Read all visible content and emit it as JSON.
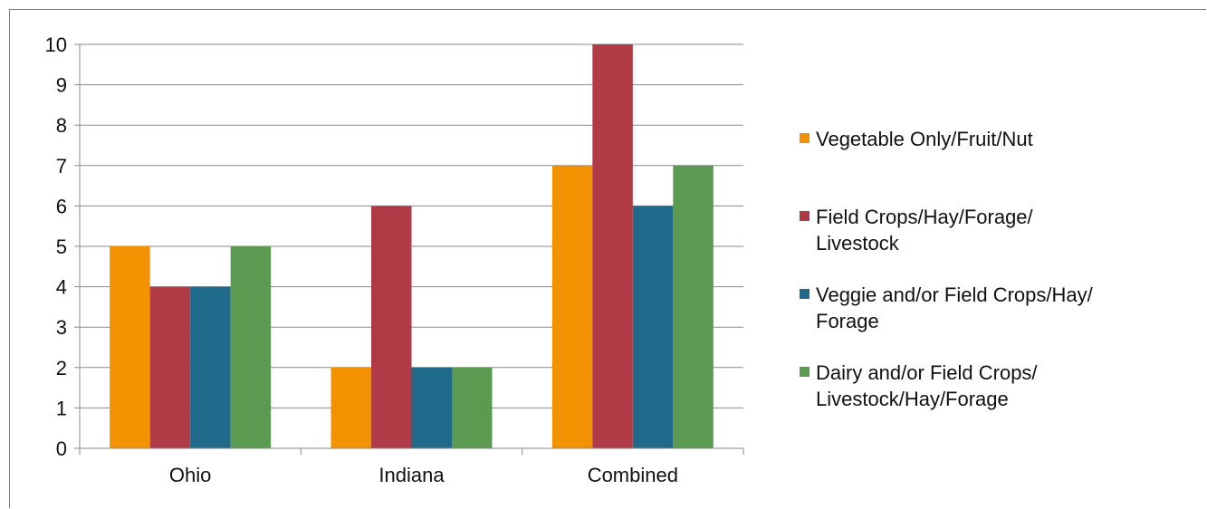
{
  "chart_data": {
    "type": "bar",
    "title": "",
    "xlabel": "",
    "ylabel": "",
    "categories": [
      "Ohio",
      "Indiana",
      "Combined"
    ],
    "ylim": [
      0,
      10
    ],
    "yticks": [
      "0",
      "1",
      "2",
      "3",
      "4",
      "5",
      "6",
      "7",
      "8",
      "9",
      "10"
    ],
    "grid": true,
    "legend_position": "right",
    "series": [
      {
        "name": "Vegetable Only/Fruit/Nut",
        "legend_lines": [
          "Vegetable Only/Fruit/Nut"
        ],
        "color": "#F39200",
        "values": [
          5,
          2,
          7
        ]
      },
      {
        "name": "Field Crops/Hay/Forage/ Livestock",
        "legend_lines": [
          "Field Crops/Hay/Forage/",
          "Livestock"
        ],
        "color": "#B03A46",
        "values": [
          4,
          6,
          10
        ]
      },
      {
        "name": "Veggie and/or Field Crops/Hay/ Forage",
        "legend_lines": [
          "Veggie and/or Field Crops/Hay/",
          "Forage"
        ],
        "color": "#1F6A8A",
        "values": [
          4,
          2,
          6
        ]
      },
      {
        "name": "Dairy and/or Field Crops/ Livestock/Hay/Forage",
        "legend_lines": [
          "Dairy and/or Field Crops/",
          "Livestock/Hay/Forage"
        ],
        "color": "#5C9A52",
        "values": [
          5,
          2,
          7
        ]
      }
    ]
  }
}
